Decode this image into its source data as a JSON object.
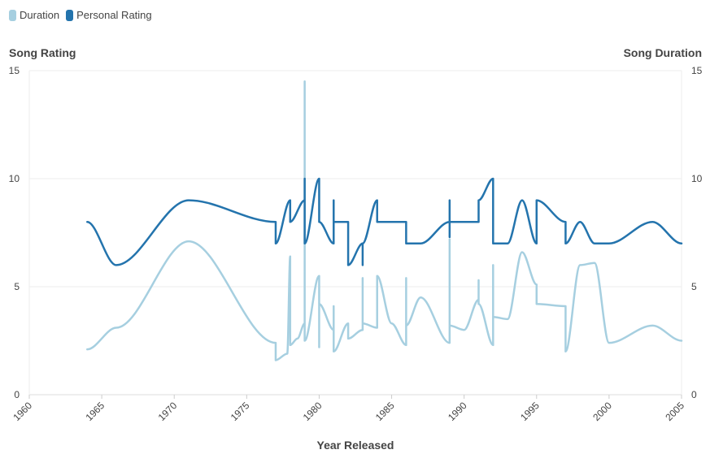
{
  "legend": {
    "items": [
      {
        "label": "Duration",
        "color": "#a6cfe0"
      },
      {
        "label": "Personal Rating",
        "color": "#2474ad"
      }
    ]
  },
  "chart_data": {
    "type": "line",
    "xlabel": "Year Released",
    "ylabel_left": "Song Rating",
    "ylabel_right": "Song Duration",
    "xlim": [
      1960,
      2005
    ],
    "ylim_left": [
      0,
      15
    ],
    "ylim_right": [
      0,
      15
    ],
    "x_ticks": [
      "1960",
      "1965",
      "1970",
      "1975",
      "1980",
      "1985",
      "1990",
      "1995",
      "2000",
      "2005"
    ],
    "y_ticks": [
      "0",
      "5",
      "10",
      "15"
    ],
    "grid": true,
    "legend_position": "top-left",
    "series": [
      {
        "name": "Duration",
        "color": "#a6cfe0",
        "axis": "right",
        "points": [
          [
            1964,
            2.1
          ],
          [
            1966,
            3.1
          ],
          [
            1971,
            7.1
          ],
          [
            1977,
            2.4
          ],
          [
            1977,
            1.6
          ],
          [
            1977.8,
            1.9
          ],
          [
            1978,
            6.4
          ],
          [
            1978,
            2.3
          ],
          [
            1978.5,
            2.6
          ],
          [
            1979,
            3.3
          ],
          [
            1979,
            14.5
          ],
          [
            1979,
            2.5
          ],
          [
            1980,
            5.5
          ],
          [
            1980,
            2.2
          ],
          [
            1980,
            4.2
          ],
          [
            1981,
            3.0
          ],
          [
            1981,
            4.1
          ],
          [
            1981,
            2.0
          ],
          [
            1982,
            3.3
          ],
          [
            1982,
            2.6
          ],
          [
            1983,
            3.0
          ],
          [
            1983,
            5.4
          ],
          [
            1983,
            3.3
          ],
          [
            1984,
            3.1
          ],
          [
            1984,
            5.5
          ],
          [
            1985,
            3.3
          ],
          [
            1986,
            2.3
          ],
          [
            1986,
            5.4
          ],
          [
            1986,
            3.2
          ],
          [
            1987,
            4.5
          ],
          [
            1989,
            2.4
          ],
          [
            1989,
            7.2
          ],
          [
            1989,
            3.2
          ],
          [
            1990,
            3.0
          ],
          [
            1991,
            4.4
          ],
          [
            1991,
            5.3
          ],
          [
            1991,
            4.2
          ],
          [
            1992,
            2.3
          ],
          [
            1992,
            6.0
          ],
          [
            1992,
            3.6
          ],
          [
            1993,
            3.5
          ],
          [
            1994,
            6.6
          ],
          [
            1995,
            5.1
          ],
          [
            1995,
            4.2
          ],
          [
            1997,
            4.1
          ],
          [
            1997,
            2.0
          ],
          [
            1998,
            6.0
          ],
          [
            1999,
            6.1
          ],
          [
            2000,
            2.4
          ],
          [
            2003,
            3.2
          ],
          [
            2005,
            2.5
          ]
        ]
      },
      {
        "name": "Personal Rating",
        "color": "#2474ad",
        "axis": "left",
        "points": [
          [
            1964,
            8
          ],
          [
            1966,
            6
          ],
          [
            1971,
            9
          ],
          [
            1977,
            8
          ],
          [
            1977,
            7
          ],
          [
            1978,
            9
          ],
          [
            1978,
            8
          ],
          [
            1979,
            9
          ],
          [
            1979,
            10
          ],
          [
            1979,
            7
          ],
          [
            1980,
            10
          ],
          [
            1980,
            8
          ],
          [
            1981,
            7
          ],
          [
            1981,
            9
          ],
          [
            1981,
            8
          ],
          [
            1982,
            8
          ],
          [
            1982,
            6
          ],
          [
            1983,
            7
          ],
          [
            1983,
            6
          ],
          [
            1983,
            7
          ],
          [
            1984,
            9
          ],
          [
            1984,
            8
          ],
          [
            1986,
            8
          ],
          [
            1986,
            7
          ],
          [
            1987,
            7
          ],
          [
            1989,
            8
          ],
          [
            1989,
            9
          ],
          [
            1989,
            7.3
          ],
          [
            1989,
            8
          ],
          [
            1991,
            8
          ],
          [
            1991,
            9
          ],
          [
            1992,
            10
          ],
          [
            1992,
            7
          ],
          [
            1993,
            7
          ],
          [
            1994,
            9
          ],
          [
            1995,
            7
          ],
          [
            1995,
            9
          ],
          [
            1997,
            8
          ],
          [
            1997,
            7
          ],
          [
            1998,
            8
          ],
          [
            1999,
            7
          ],
          [
            2000,
            7
          ],
          [
            2003,
            8
          ],
          [
            2005,
            7
          ]
        ]
      }
    ]
  }
}
